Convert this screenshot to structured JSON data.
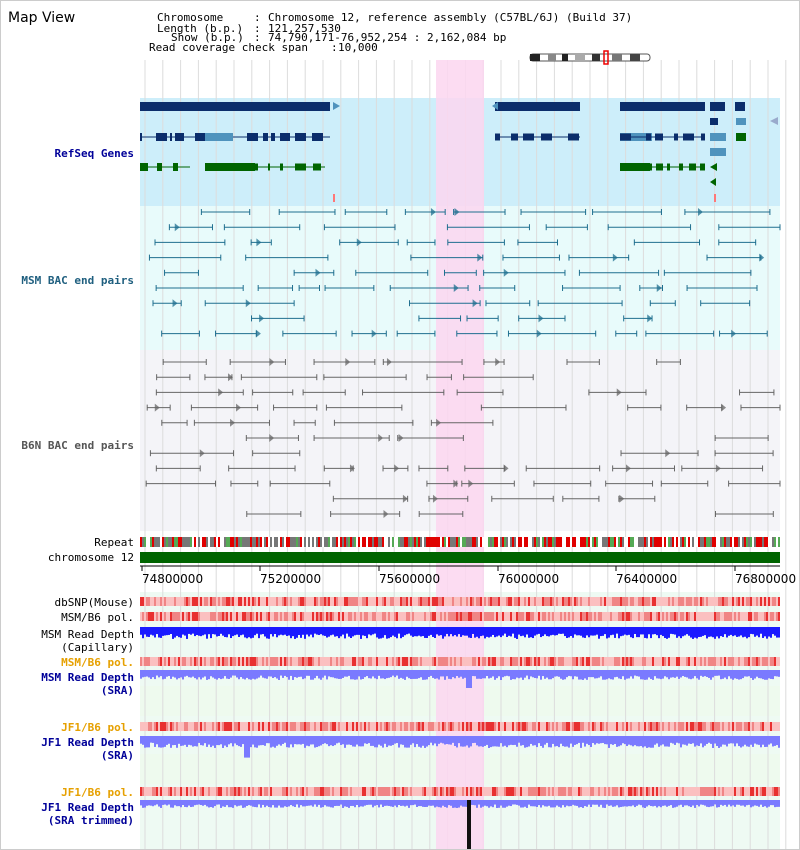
{
  "header": {
    "title": "Map View",
    "chromosome_key": "Chromosome",
    "chromosome_val": "Chromosome 12, reference assembly (C57BL/6J) (Build 37)",
    "length_key": "Length (b.p.)",
    "length_val": "121,257,530",
    "show_key": "Show (b.p.)",
    "show_val": "74,790,171-76,952,254 : 2,162,084 bp",
    "coverage_key": "Read coverage check span",
    "coverage_val": "10,000"
  },
  "tracks": {
    "refseq": "RefSeq Genes",
    "msm_bac": "MSM BAC end pairs",
    "b6n_bac": "B6N BAC end pairs",
    "repeat": "Repeat",
    "chromosome": "chromosome 12",
    "dbsnp": "dbSNP(Mouse)",
    "msm_b6_pol_1": "MSM/B6 pol.",
    "msm_depth_cap_1": "MSM Read Depth",
    "msm_depth_cap_2": "(Capillary)",
    "msm_b6_pol_2": "MSM/B6 pol.",
    "msm_depth_sra_1": "MSM Read Depth",
    "msm_depth_sra_2": "(SRA)",
    "jf1_b6_pol_1": "JF1/B6 pol.",
    "jf1_depth_sra_1": "JF1 Read Depth",
    "jf1_depth_sra_2": "(SRA)",
    "jf1_b6_pol_2": "JF1/B6 pol.",
    "jf1_depth_trim_1": "JF1 Read Depth",
    "jf1_depth_trim_2": "(SRA trimmed)"
  },
  "axis": {
    "ticks": [
      "74800000",
      "75200000",
      "75600000",
      "76000000",
      "76400000",
      "76800000"
    ]
  },
  "colors": {
    "refseq_bg": "#cdeefa",
    "bac_bg": "#e8fbfb",
    "highlight": "#fbd6f0",
    "gene_dark": "#0b2d6b",
    "gene_light": "#4f93bd",
    "gene_green": "#006400",
    "msm_line": "#1f6f8f",
    "b6n_line": "#666666",
    "chrom_bar": "#006400",
    "snp_red": "#f08080",
    "depth_blue": "#1a1aff",
    "depth_light": "#7a7aff",
    "label_blue": "#000099",
    "label_orange": "#e6a000"
  }
}
